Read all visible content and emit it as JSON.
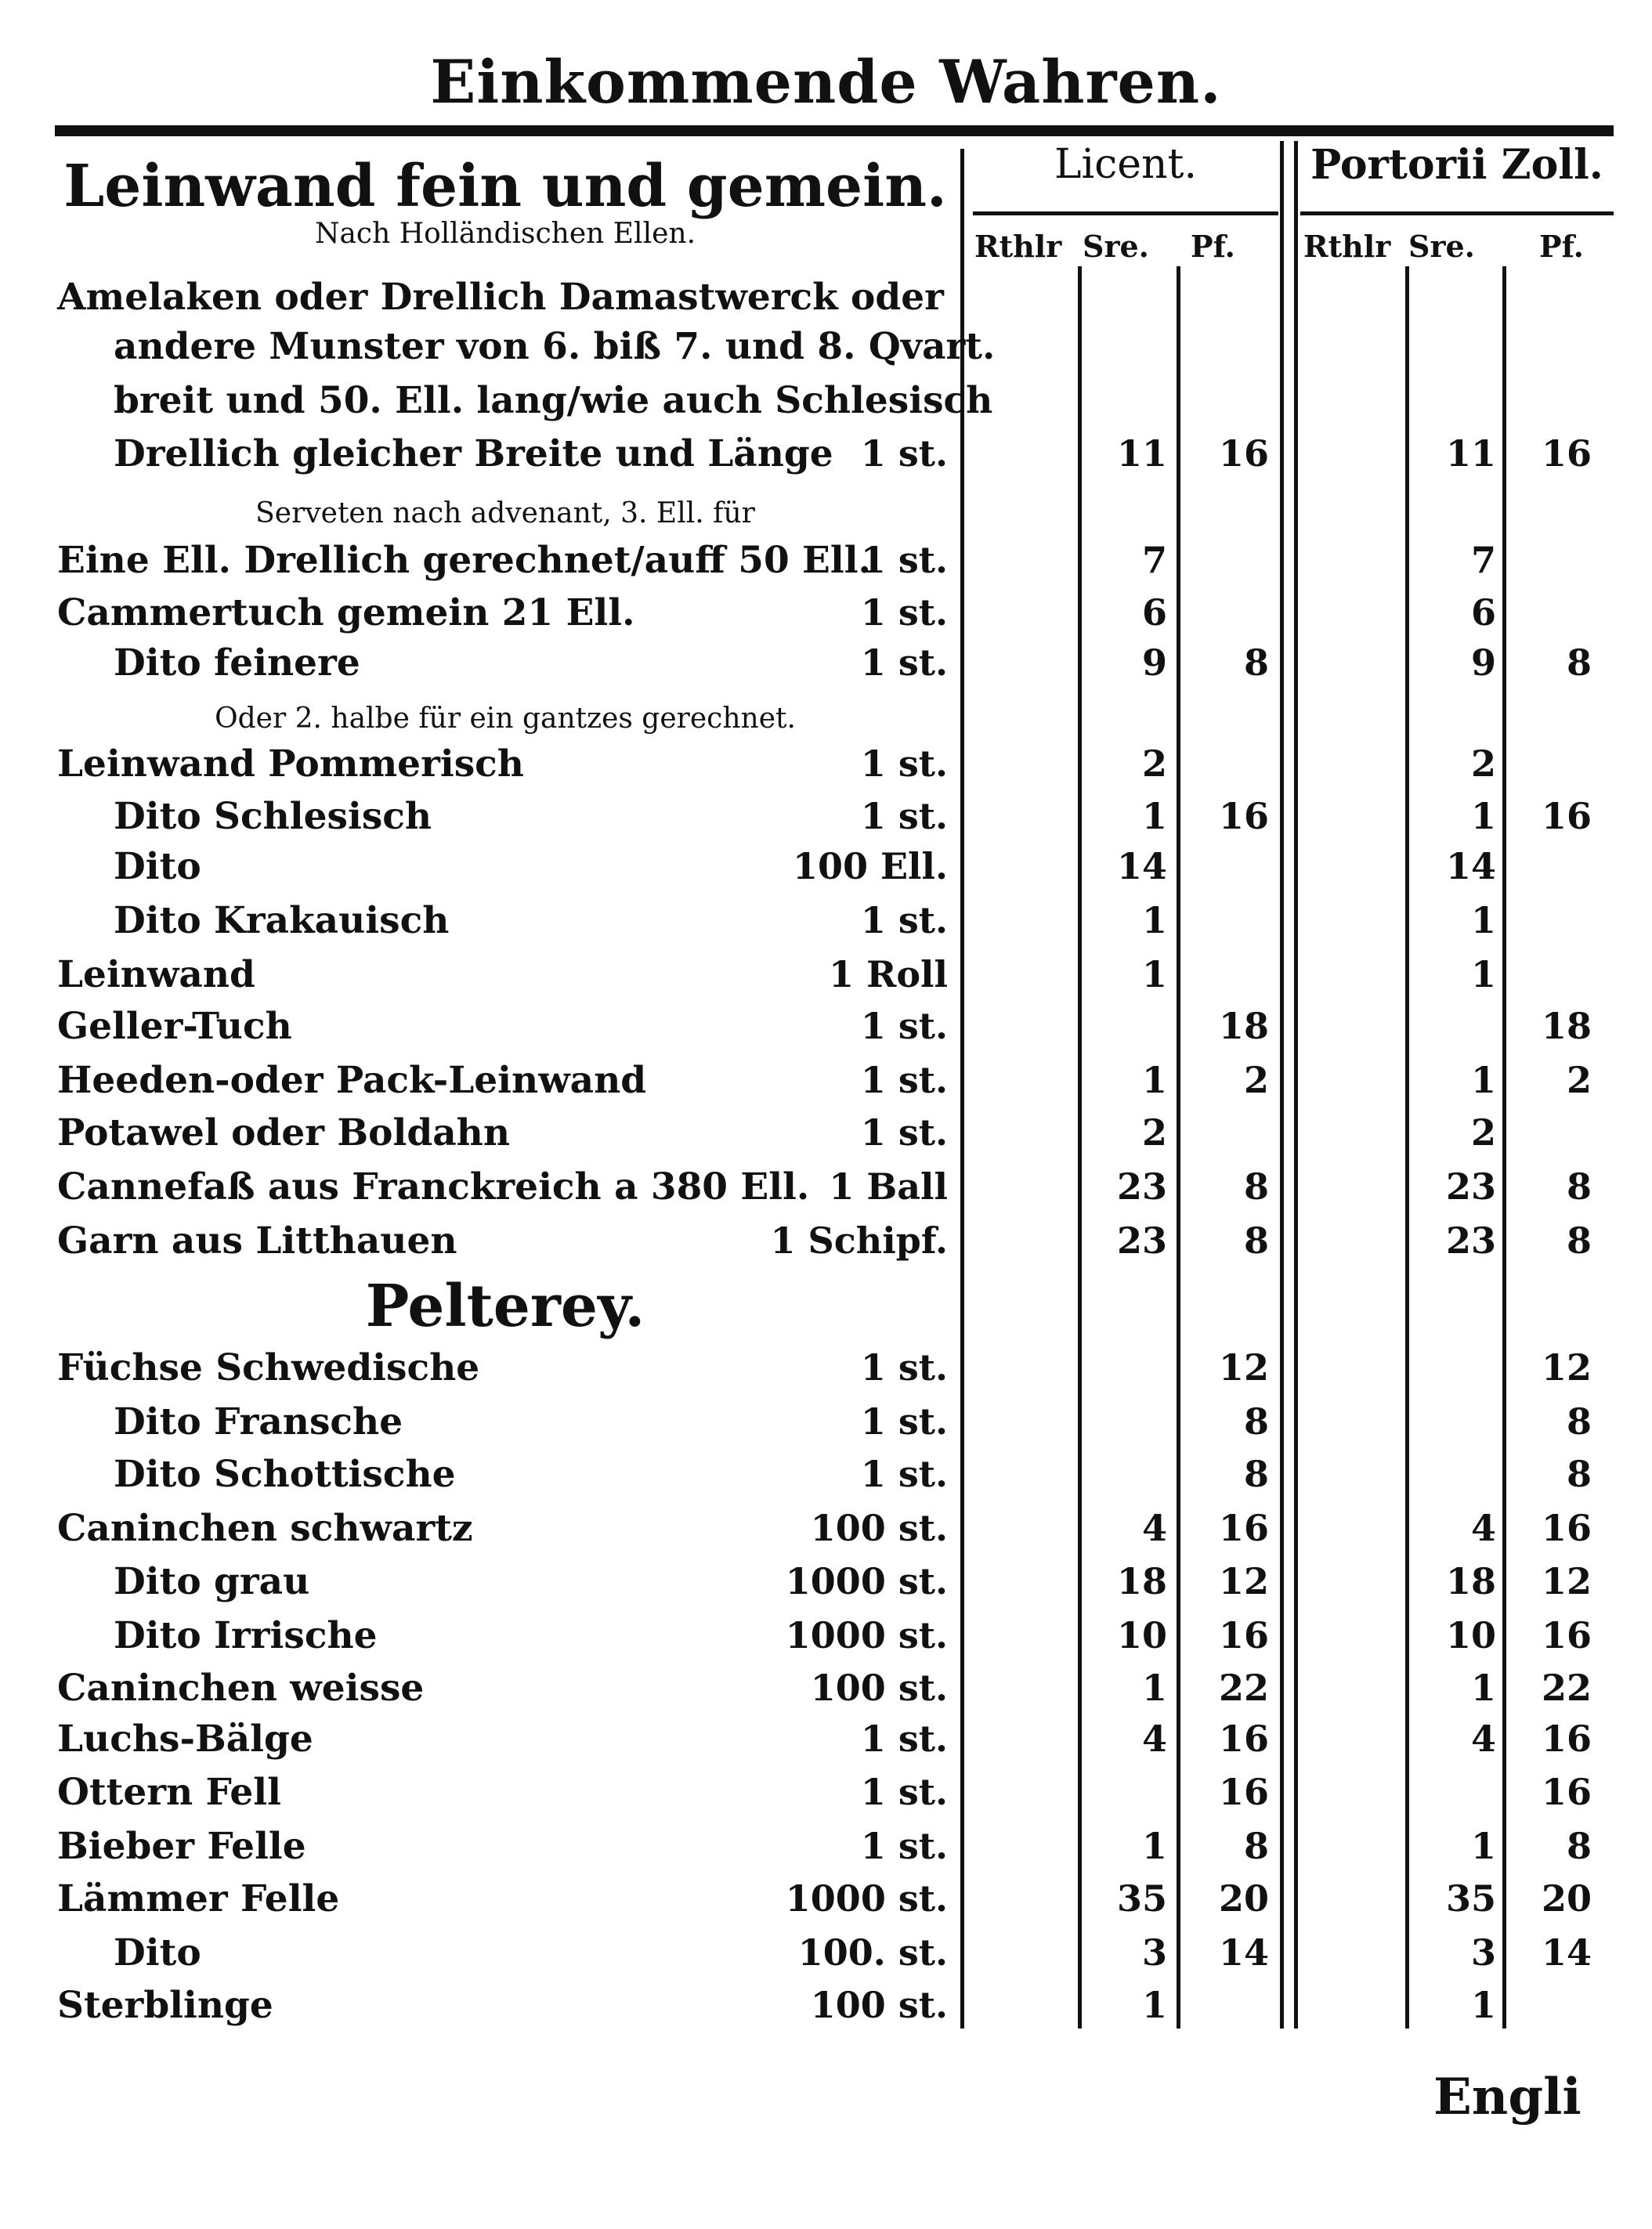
{
  "page_title": "Einkommende Wahren.",
  "headers": {
    "licent": "Licent.",
    "portorii": "Portorii Zoll.",
    "subcolumns": [
      "Rthlr",
      "Sre.",
      "Pf."
    ]
  },
  "sections": [
    {
      "title": "Leinwand fein und gemein.",
      "note": "Nach Holländischen Ellen.",
      "rows": [
        {
          "text": "Amelaken oder Drellich Damastwerck oder",
          "indent": false
        },
        {
          "text": "andere Munster von 6. biß 7. und 8. Qvart.",
          "indent": true
        },
        {
          "text": "breit und 50. Ell. lang/wie auch Schlesisch",
          "indent": true
        },
        {
          "text": "Drellich gleicher Breite und Länge",
          "indent": true,
          "unit": "1 st.",
          "licent": [
            "",
            "11",
            "16"
          ],
          "portorii": [
            "",
            "11",
            "16"
          ]
        },
        {
          "text": "Serveten nach advenant, 3. Ell. für",
          "note": true
        },
        {
          "text": "Eine Ell. Drellich gerechnet/auff 50 Ell.",
          "unit": "1 st.",
          "licent": [
            "",
            "7",
            ""
          ],
          "portorii": [
            "",
            "7",
            ""
          ]
        },
        {
          "text": "Cammertuch gemein 21 Ell.",
          "unit": "1 st.",
          "licent": [
            "",
            "6",
            ""
          ],
          "portorii": [
            "",
            "6",
            ""
          ]
        },
        {
          "text": "Dito feinere",
          "indent": true,
          "unit": "1 st.",
          "licent": [
            "",
            "9",
            "8"
          ],
          "portorii": [
            "",
            "9",
            "8"
          ]
        },
        {
          "text": "Oder 2. halbe für ein gantzes gerechnet.",
          "note": true
        },
        {
          "text": "Leinwand Pommerisch",
          "unit": "1 st.",
          "licent": [
            "",
            "2",
            ""
          ],
          "portorii": [
            "",
            "2",
            ""
          ]
        },
        {
          "text": "Dito Schlesisch",
          "indent": true,
          "unit": "1 st.",
          "licent": [
            "",
            "1",
            "16"
          ],
          "portorii": [
            "",
            "1",
            "16"
          ]
        },
        {
          "text": "Dito",
          "indent": true,
          "unit": "100 Ell.",
          "licent": [
            "",
            "14",
            ""
          ],
          "portorii": [
            "",
            "14",
            ""
          ]
        },
        {
          "text": "Dito Krakauisch",
          "indent": true,
          "unit": "1 st.",
          "licent": [
            "",
            "1",
            ""
          ],
          "portorii": [
            "",
            "1",
            ""
          ]
        },
        {
          "text": "Leinwand",
          "unit": "1 Roll",
          "licent": [
            "",
            "1",
            ""
          ],
          "portorii": [
            "",
            "1",
            ""
          ]
        },
        {
          "text": "Geller-Tuch",
          "unit": "1 st.",
          "licent": [
            "",
            "",
            "18"
          ],
          "portorii": [
            "",
            "",
            "18"
          ]
        },
        {
          "text": "Heeden-oder Pack-Leinwand",
          "unit": "1 st.",
          "licent": [
            "",
            "1",
            "2"
          ],
          "portorii": [
            "",
            "1",
            "2"
          ]
        },
        {
          "text": "Potawel oder Boldahn",
          "unit": "1 st.",
          "licent": [
            "",
            "2",
            ""
          ],
          "portorii": [
            "",
            "2",
            ""
          ]
        },
        {
          "text": "Cannefaß aus Franckreich a 380 Ell.",
          "unit": "1 Ball",
          "licent": [
            "",
            "23",
            "8"
          ],
          "portorii": [
            "",
            "23",
            "8"
          ]
        },
        {
          "text": "Garn aus Litthauen",
          "unit": "1 Schipf.",
          "licent": [
            "",
            "23",
            "8"
          ],
          "portorii": [
            "",
            "23",
            "8"
          ]
        }
      ]
    },
    {
      "title": "Pelterey.",
      "rows": [
        {
          "text": "Füchse Schwedische",
          "unit": "1 st.",
          "licent": [
            "",
            "",
            "12"
          ],
          "portorii": [
            "",
            "",
            "12"
          ]
        },
        {
          "text": "Dito Fransche",
          "indent": true,
          "unit": "1 st.",
          "licent": [
            "",
            "",
            "8"
          ],
          "portorii": [
            "",
            "",
            "8"
          ]
        },
        {
          "text": "Dito Schottische",
          "indent": true,
          "unit": "1 st.",
          "licent": [
            "",
            "",
            "8"
          ],
          "portorii": [
            "",
            "",
            "8"
          ]
        },
        {
          "text": "Caninchen schwartz",
          "unit": "100 st.",
          "licent": [
            "",
            "4",
            "16"
          ],
          "portorii": [
            "",
            "4",
            "16"
          ]
        },
        {
          "text": "Dito grau",
          "indent": true,
          "unit": "1000 st.",
          "licent": [
            "",
            "18",
            "12"
          ],
          "portorii": [
            "",
            "18",
            "12"
          ]
        },
        {
          "text": "Dito Irrische",
          "indent": true,
          "unit": "1000 st.",
          "licent": [
            "",
            "10",
            "16"
          ],
          "portorii": [
            "",
            "10",
            "16"
          ]
        },
        {
          "text": "Caninchen weisse",
          "unit": "100 st.",
          "licent": [
            "",
            "1",
            "22"
          ],
          "portorii": [
            "",
            "1",
            "22"
          ]
        },
        {
          "text": "Luchs-Bälge",
          "unit": "1 st.",
          "licent": [
            "",
            "4",
            "16"
          ],
          "portorii": [
            "",
            "4",
            "16"
          ]
        },
        {
          "text": "Ottern Fell",
          "unit": "1 st.",
          "licent": [
            "",
            "",
            "16"
          ],
          "portorii": [
            "",
            "",
            "16"
          ]
        },
        {
          "text": "Bieber Felle",
          "unit": "1 st.",
          "licent": [
            "",
            "1",
            "8"
          ],
          "portorii": [
            "",
            "1",
            "8"
          ]
        },
        {
          "text": "Lämmer Felle",
          "unit": "1000 st.",
          "licent": [
            "",
            "35",
            "20"
          ],
          "portorii": [
            "",
            "35",
            "20"
          ]
        },
        {
          "text": "Dito",
          "indent": true,
          "unit": "100. st.",
          "licent": [
            "",
            "3",
            "14"
          ],
          "portorii": [
            "",
            "3",
            "14"
          ]
        },
        {
          "text": "Sterblinge",
          "unit": "100 st.",
          "licent": [
            "",
            "1",
            ""
          ],
          "portorii": [
            "",
            "1",
            ""
          ]
        }
      ]
    }
  ],
  "catchword": "Engli"
}
